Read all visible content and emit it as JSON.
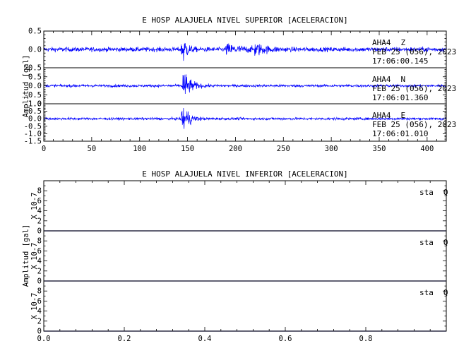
{
  "chart_data": [
    {
      "type": "line",
      "title": "E HOSP ALAJUELA NIVEL SUPERIOR [ACELERACION]",
      "ylabel": "Amplitud [gal]",
      "xlim": [
        0,
        420
      ],
      "x_ticks": [
        "0",
        "50",
        "100",
        "150",
        "200",
        "250",
        "300",
        "350",
        "400"
      ],
      "series": [
        {
          "name": "AHA4 Z",
          "station": "AHA4",
          "component": "Z",
          "date": "FEB 25 (056), 2023",
          "time": "17:06:00.145",
          "ylim": [
            -0.5,
            0.5
          ],
          "y_ticks": [
            "0.5",
            "0.0",
            "-0.5"
          ],
          "noise": 0.06,
          "events": [
            {
              "t": 144,
              "amp": 0.55,
              "decay": 4
            },
            {
              "t": 190,
              "amp": 0.12,
              "decay": 18
            },
            {
              "t": 220,
              "amp": 0.14,
              "decay": 10
            }
          ]
        },
        {
          "name": "AHA4 N",
          "station": "AHA4",
          "component": "N",
          "date": "FEB 25 (056), 2023",
          "time": "17:06:01.360",
          "ylim": [
            -1.0,
            1.0
          ],
          "y_ticks": [
            "0.5",
            "0.0",
            "-0.5",
            "-1.0"
          ],
          "noise": 0.07,
          "events": [
            {
              "t": 145,
              "amp": 0.95,
              "decay": 7
            }
          ]
        },
        {
          "name": "AHA4 E",
          "station": "AHA4",
          "component": "E",
          "date": "FEB 25 (056), 2023",
          "time": "17:06:01.010",
          "ylim": [
            -1.5,
            1.0
          ],
          "y_ticks": [
            "1.0",
            "0.5",
            "0.0",
            "-0.5",
            "-1.0",
            "-1.5"
          ],
          "noise": 0.08,
          "events": [
            {
              "t": 144,
              "amp": 1.3,
              "decay": 6
            }
          ]
        }
      ]
    },
    {
      "type": "line",
      "title": "E HOSP ALAJUELA NIVEL INFERIOR [ACELERACION]",
      "ylabel": "Amplitud [gal]",
      "scale_label": "X 10-7",
      "xlim": [
        0,
        1
      ],
      "x_ticks": [
        "0.0",
        "0.2",
        "0.4",
        "0.6",
        "0.8"
      ],
      "series": [
        {
          "name": "sta Q",
          "station": "sta",
          "component": "Q",
          "ylim": [
            0,
            10
          ],
          "y_ticks": [
            "8",
            "6",
            "4",
            "2",
            "0"
          ],
          "values": [
            0,
            0
          ]
        },
        {
          "name": "sta Q",
          "station": "sta",
          "component": "Q",
          "ylim": [
            0,
            10
          ],
          "y_ticks": [
            "8",
            "6",
            "4",
            "2",
            "0"
          ],
          "values": [
            0,
            0
          ]
        },
        {
          "name": "sta Q",
          "station": "sta",
          "component": "Q",
          "ylim": [
            0,
            10
          ],
          "y_ticks": [
            "8",
            "6",
            "4",
            "2",
            "0"
          ],
          "values": [
            0,
            0
          ]
        }
      ]
    }
  ],
  "colors": {
    "trace": "#0000ff",
    "flat_trace": "#1a1aa8",
    "axes": "#000000"
  }
}
